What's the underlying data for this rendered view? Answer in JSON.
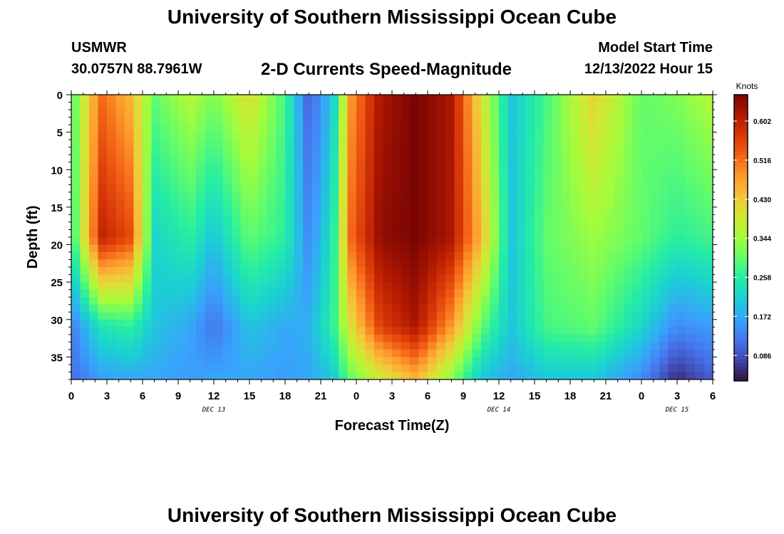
{
  "page": {
    "title": "University of Southern Mississippi Ocean Cube",
    "footer_title": "University of Southern Mississippi Ocean Cube"
  },
  "header": {
    "station": "USMWR",
    "coords": "30.0757N  88.7961W",
    "subtitle": "2-D Currents Speed-Magnitude",
    "model_label": "Model Start Time",
    "model_time": "12/13/2022 Hour 15"
  },
  "chart_data": {
    "type": "heatmap",
    "title": "2-D Currents Speed-Magnitude",
    "xlabel": "Forecast Time(Z)",
    "ylabel": "Depth (ft)",
    "x_ticks": [
      "0",
      "3",
      "6",
      "9",
      "12",
      "15",
      "18",
      "21",
      "0",
      "3",
      "6",
      "9",
      "12",
      "15",
      "18",
      "21",
      "0",
      "3",
      "6"
    ],
    "x_date_labels": [
      {
        "hour_index": 12,
        "label": "DEC 13"
      },
      {
        "hour_index": 36,
        "label": "DEC 14"
      },
      {
        "hour_index": 51,
        "label": "DEC 15"
      }
    ],
    "xlim_hours": [
      0,
      54
    ],
    "y_ticks": [
      0,
      5,
      10,
      15,
      20,
      25,
      30,
      35
    ],
    "ylim_ft": [
      0,
      38
    ],
    "y_inverted": true,
    "colorbar": {
      "unit": "Knots",
      "ticks": [
        0.602,
        0.516,
        0.43,
        0.344,
        0.258,
        0.172,
        0.086
      ],
      "range": [
        0.03,
        0.66
      ],
      "colormap": [
        "#30123b",
        "#4145ab",
        "#4675ed",
        "#39a2fc",
        "#1bcfd4",
        "#24eca6",
        "#61fc6c",
        "#a4fc3b",
        "#d1e834",
        "#f3c63a",
        "#fe9b2d",
        "#f36315",
        "#d93806",
        "#b11901",
        "#7a0403"
      ]
    },
    "speed_profiles": [
      {
        "t": 0,
        "surface": 0.28,
        "mid": 0.25,
        "deep": 0.13,
        "bottom": 0.11
      },
      {
        "t": 2.5,
        "surface": 0.52,
        "mid": 0.6,
        "deep": 0.24,
        "bottom": 0.16
      },
      {
        "t": 5,
        "surface": 0.45,
        "mid": 0.55,
        "deep": 0.26,
        "bottom": 0.17
      },
      {
        "t": 7,
        "surface": 0.3,
        "mid": 0.22,
        "deep": 0.2,
        "bottom": 0.17
      },
      {
        "t": 10,
        "surface": 0.36,
        "mid": 0.26,
        "deep": 0.17,
        "bottom": 0.16
      },
      {
        "t": 12,
        "surface": 0.32,
        "mid": 0.2,
        "deep": 0.12,
        "bottom": 0.17
      },
      {
        "t": 15,
        "surface": 0.4,
        "mid": 0.3,
        "deep": 0.2,
        "bottom": 0.17
      },
      {
        "t": 18,
        "surface": 0.28,
        "mid": 0.26,
        "deep": 0.17,
        "bottom": 0.16
      },
      {
        "t": 20,
        "surface": 0.1,
        "mid": 0.14,
        "deep": 0.18,
        "bottom": 0.17
      },
      {
        "t": 22,
        "surface": 0.2,
        "mid": 0.24,
        "deep": 0.26,
        "bottom": 0.2
      },
      {
        "t": 23.5,
        "surface": 0.48,
        "mid": 0.52,
        "deep": 0.4,
        "bottom": 0.3
      },
      {
        "t": 26,
        "surface": 0.62,
        "mid": 0.64,
        "deep": 0.56,
        "bottom": 0.38
      },
      {
        "t": 29,
        "surface": 0.66,
        "mid": 0.66,
        "deep": 0.62,
        "bottom": 0.45
      },
      {
        "t": 32,
        "surface": 0.62,
        "mid": 0.62,
        "deep": 0.48,
        "bottom": 0.32
      },
      {
        "t": 34.5,
        "surface": 0.4,
        "mid": 0.45,
        "deep": 0.3,
        "bottom": 0.2
      },
      {
        "t": 37,
        "surface": 0.2,
        "mid": 0.2,
        "deep": 0.2,
        "bottom": 0.17
      },
      {
        "t": 40,
        "surface": 0.28,
        "mid": 0.3,
        "deep": 0.28,
        "bottom": 0.2
      },
      {
        "t": 44,
        "surface": 0.42,
        "mid": 0.34,
        "deep": 0.3,
        "bottom": 0.2
      },
      {
        "t": 48,
        "surface": 0.3,
        "mid": 0.3,
        "deep": 0.22,
        "bottom": 0.14
      },
      {
        "t": 51,
        "surface": 0.32,
        "mid": 0.26,
        "deep": 0.14,
        "bottom": 0.05
      },
      {
        "t": 54,
        "surface": 0.36,
        "mid": 0.28,
        "deep": 0.16,
        "bottom": 0.1
      }
    ]
  }
}
